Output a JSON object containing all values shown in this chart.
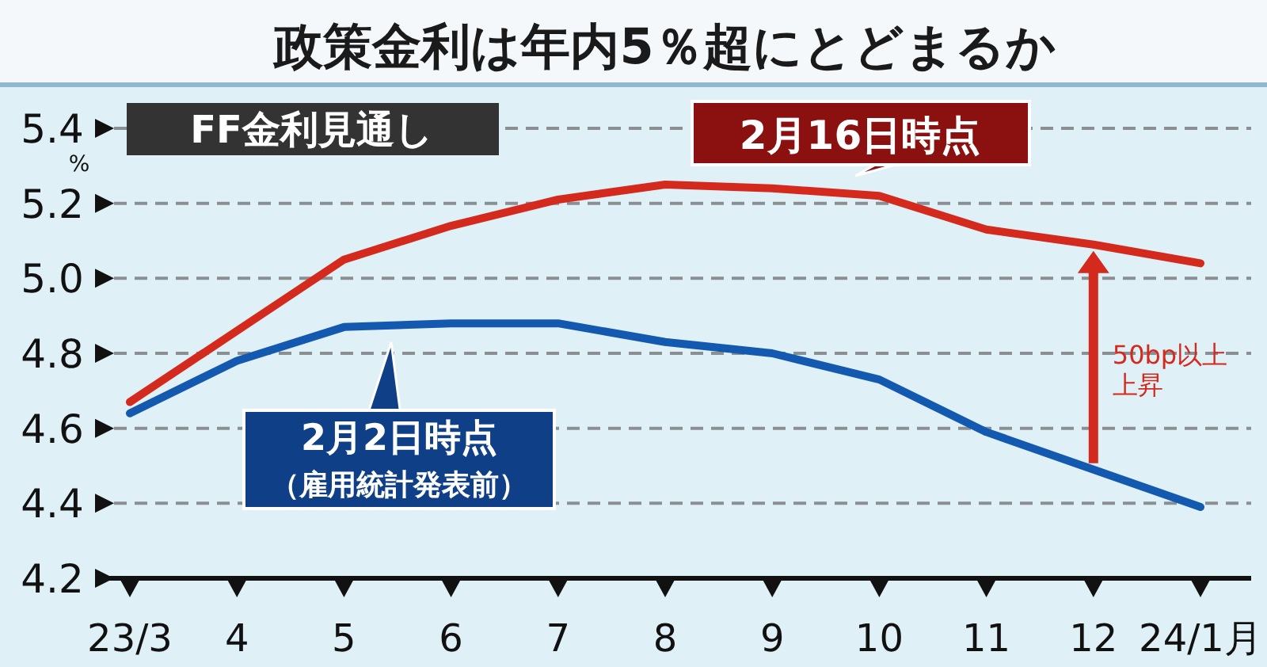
{
  "chart_data": {
    "type": "line",
    "title": "政策金利は年内5％超にとどまるか",
    "ylabel": "%",
    "categories": [
      "23/3",
      "4",
      "5",
      "6",
      "7",
      "8",
      "9",
      "10",
      "11",
      "12",
      "24/1月"
    ],
    "series": [
      {
        "name": "2月16日時点",
        "color": "#d42a1e",
        "values": [
          4.67,
          4.86,
          5.05,
          5.14,
          5.21,
          5.25,
          5.24,
          5.22,
          5.13,
          5.09,
          5.04
        ]
      },
      {
        "name": "2月2日時点",
        "color": "#1459b0",
        "values": [
          4.64,
          4.78,
          4.87,
          4.88,
          4.88,
          4.83,
          4.8,
          4.73,
          4.59,
          4.49,
          4.39
        ]
      }
    ],
    "ylim": [
      4.2,
      5.4
    ],
    "yticks": [
      4.2,
      4.4,
      4.6,
      4.8,
      {
        "value": 5.0,
        "label": "5.0"
      },
      5.2,
      5.4
    ],
    "grid": "y",
    "line_style": "solid",
    "marker": "none",
    "annotations": [
      "FF金利見通し",
      "（雇用統計発表前）",
      "50bp以上上昇"
    ]
  }
}
